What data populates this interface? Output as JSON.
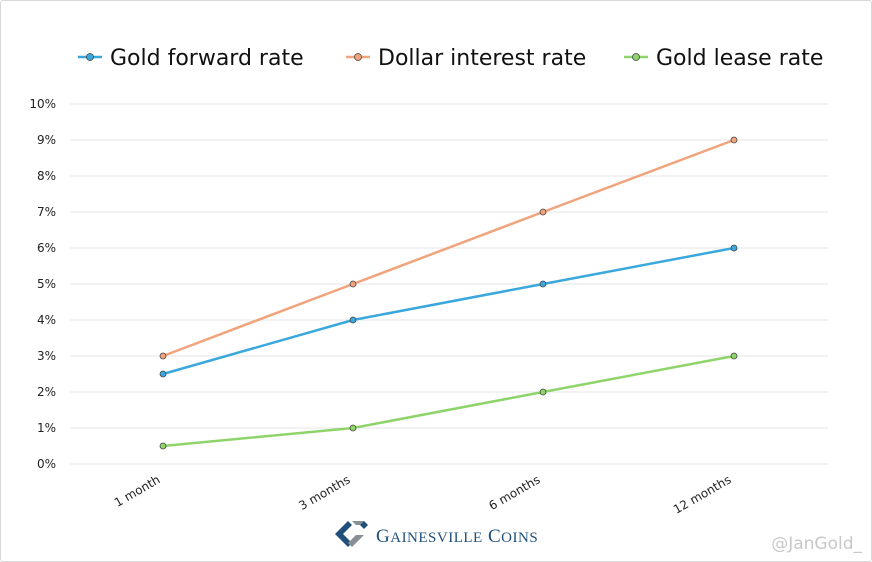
{
  "chart_data": {
    "type": "line",
    "categories": [
      "1 month",
      "3 months",
      "6 months",
      "12 months"
    ],
    "series": [
      {
        "name": "Gold forward rate",
        "values": [
          2.5,
          4,
          5,
          6
        ],
        "color": "#3aa8dc"
      },
      {
        "name": "Dollar interest rate",
        "values": [
          3,
          5,
          7,
          9
        ],
        "color": "#f0a47c"
      },
      {
        "name": "Gold lease rate",
        "values": [
          0.5,
          1,
          2,
          3
        ],
        "color": "#8fd46a"
      }
    ],
    "yticks": [
      "0%",
      "1%",
      "2%",
      "3%",
      "4%",
      "5%",
      "6%",
      "7%",
      "8%",
      "9%",
      "10%"
    ],
    "ylim": [
      0,
      10
    ],
    "grid": true,
    "legend_position": "top",
    "xlabel": "",
    "ylabel": ""
  },
  "branding": {
    "logo_text": "Gainesville Coins",
    "watermark": "@JanGold_"
  }
}
